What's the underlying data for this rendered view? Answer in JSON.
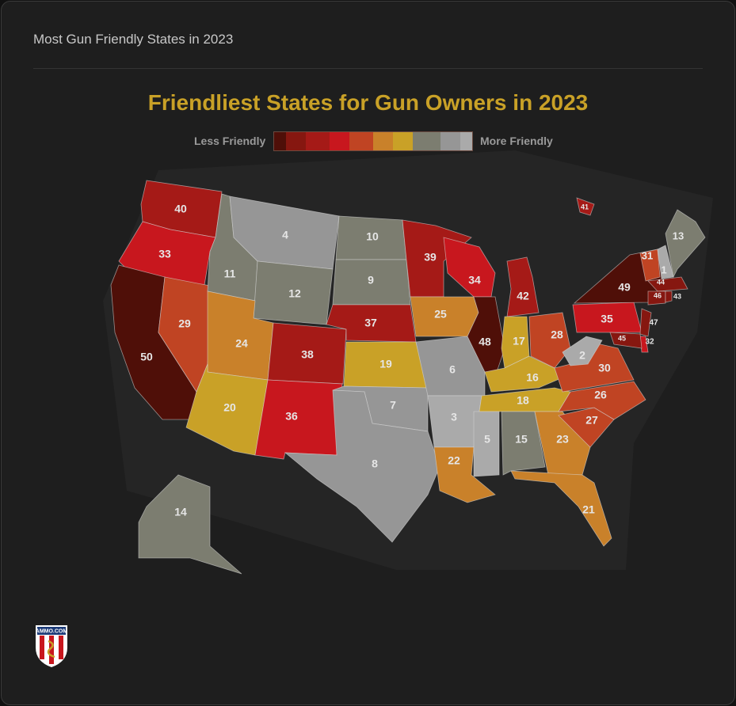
{
  "header": {
    "title": "Most Gun Friendly States in 2023"
  },
  "map": {
    "title": "Friendliest States for Gun Owners in 2023",
    "legend": {
      "less_label": "Less Friendly",
      "more_label": "More Friendly",
      "colors": [
        "#4f0f08",
        "#861710",
        "#a51a17",
        "#c8171e",
        "#c04423",
        "#c9812a",
        "#c9a127",
        "#7c7d70",
        "#969696",
        "#aaaaaa"
      ]
    },
    "states": [
      {
        "state": "WA",
        "rank": "40",
        "color": "#a51a17"
      },
      {
        "state": "OR",
        "rank": "33",
        "color": "#c8171e"
      },
      {
        "state": "CA",
        "rank": "50",
        "color": "#4f0f08"
      },
      {
        "state": "NV",
        "rank": "29",
        "color": "#c04423"
      },
      {
        "state": "ID",
        "rank": "11",
        "color": "#7c7d70"
      },
      {
        "state": "MT",
        "rank": "4",
        "color": "#969696"
      },
      {
        "state": "WY",
        "rank": "12",
        "color": "#7c7d70"
      },
      {
        "state": "UT",
        "rank": "24",
        "color": "#c9812a"
      },
      {
        "state": "CO",
        "rank": "38",
        "color": "#a51a17"
      },
      {
        "state": "AZ",
        "rank": "20",
        "color": "#c9a127"
      },
      {
        "state": "NM",
        "rank": "36",
        "color": "#c8171e"
      },
      {
        "state": "ND",
        "rank": "10",
        "color": "#7c7d70"
      },
      {
        "state": "SD",
        "rank": "9",
        "color": "#7c7d70"
      },
      {
        "state": "NE",
        "rank": "37",
        "color": "#a51a17"
      },
      {
        "state": "KS",
        "rank": "19",
        "color": "#c9a127"
      },
      {
        "state": "OK",
        "rank": "7",
        "color": "#969696"
      },
      {
        "state": "TX",
        "rank": "8",
        "color": "#969696"
      },
      {
        "state": "MN",
        "rank": "39",
        "color": "#a51a17"
      },
      {
        "state": "IA",
        "rank": "25",
        "color": "#c9812a"
      },
      {
        "state": "MO",
        "rank": "6",
        "color": "#969696"
      },
      {
        "state": "AR",
        "rank": "3",
        "color": "#aaaaaa"
      },
      {
        "state": "LA",
        "rank": "22",
        "color": "#c9812a"
      },
      {
        "state": "WI",
        "rank": "34",
        "color": "#c8171e"
      },
      {
        "state": "IL",
        "rank": "48",
        "color": "#4f0f08"
      },
      {
        "state": "MI",
        "rank": "42",
        "color": "#a51a17"
      },
      {
        "state": "IN",
        "rank": "17",
        "color": "#c9a127"
      },
      {
        "state": "OH",
        "rank": "28",
        "color": "#c04423"
      },
      {
        "state": "KY",
        "rank": "16",
        "color": "#c9a127"
      },
      {
        "state": "TN",
        "rank": "18",
        "color": "#c9a127"
      },
      {
        "state": "MS",
        "rank": "5",
        "color": "#aaaaaa"
      },
      {
        "state": "AL",
        "rank": "15",
        "color": "#7c7d70"
      },
      {
        "state": "GA",
        "rank": "23",
        "color": "#c9812a"
      },
      {
        "state": "FL",
        "rank": "21",
        "color": "#c9812a"
      },
      {
        "state": "SC",
        "rank": "27",
        "color": "#c04423"
      },
      {
        "state": "NC",
        "rank": "26",
        "color": "#c04423"
      },
      {
        "state": "VA",
        "rank": "30",
        "color": "#c04423"
      },
      {
        "state": "WV",
        "rank": "2",
        "color": "#aaaaaa"
      },
      {
        "state": "PA",
        "rank": "35",
        "color": "#c8171e"
      },
      {
        "state": "NY",
        "rank": "49",
        "color": "#4f0f08"
      },
      {
        "state": "VT",
        "rank": "31",
        "color": "#c04423"
      },
      {
        "state": "NH",
        "rank": "1",
        "color": "#aaaaaa"
      },
      {
        "state": "ME",
        "rank": "13",
        "color": "#7c7d70"
      },
      {
        "state": "MA",
        "rank": "44",
        "color": "#861710"
      },
      {
        "state": "CT",
        "rank": "46",
        "color": "#861710"
      },
      {
        "state": "RI",
        "rank": "43",
        "color": "#861710"
      },
      {
        "state": "NJ",
        "rank": "47",
        "color": "#861710"
      },
      {
        "state": "DE",
        "rank": "32",
        "color": "#c8171e"
      },
      {
        "state": "MD",
        "rank": "45",
        "color": "#861710"
      },
      {
        "state": "AK",
        "rank": "14",
        "color": "#7c7d70"
      },
      {
        "state": "HI",
        "rank": "41",
        "color": "#a51a17"
      }
    ]
  },
  "logo": {
    "text": "AMMO.COM"
  }
}
